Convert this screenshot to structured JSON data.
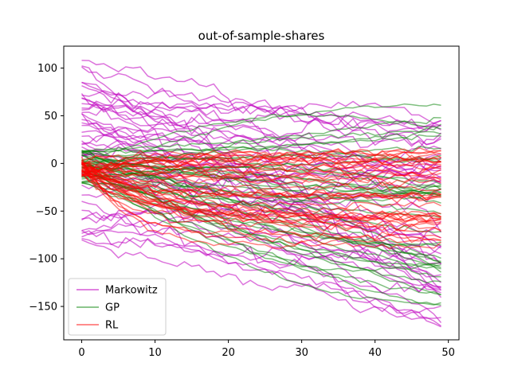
{
  "chart_data": {
    "type": "line",
    "title": "out-of-sample-shares",
    "xlabel": "",
    "ylabel": "",
    "xlim": [
      -2.45,
      51.45
    ],
    "ylim": [
      -185,
      123
    ],
    "xticks": [
      0,
      10,
      20,
      30,
      40,
      50
    ],
    "yticks": [
      -150,
      -100,
      -50,
      0,
      50,
      100
    ],
    "grid": false,
    "legend_position": "lower-left",
    "x": {
      "start": 0,
      "end": 49,
      "step": 1
    },
    "series": [
      {
        "name": "Markowitz",
        "color": "#bf00bf",
        "alpha": 0.55,
        "n_paths": 45,
        "summary": "noisy random-walk paths",
        "start_range": [
          -85,
          110
        ],
        "end_range": [
          -172,
          58
        ]
      },
      {
        "name": "GP",
        "color": "#008000",
        "alpha": 0.5,
        "n_paths": 40,
        "summary": "smooth paths diverging from near zero",
        "start_range": [
          -20,
          15
        ],
        "end_range": [
          -162,
          63
        ]
      },
      {
        "name": "RL",
        "color": "#ff0000",
        "alpha": 0.5,
        "n_paths": 40,
        "summary": "paths concentrated around -25 to -45",
        "start_range": [
          -12,
          5
        ],
        "end_range": [
          -90,
          20
        ]
      }
    ]
  }
}
